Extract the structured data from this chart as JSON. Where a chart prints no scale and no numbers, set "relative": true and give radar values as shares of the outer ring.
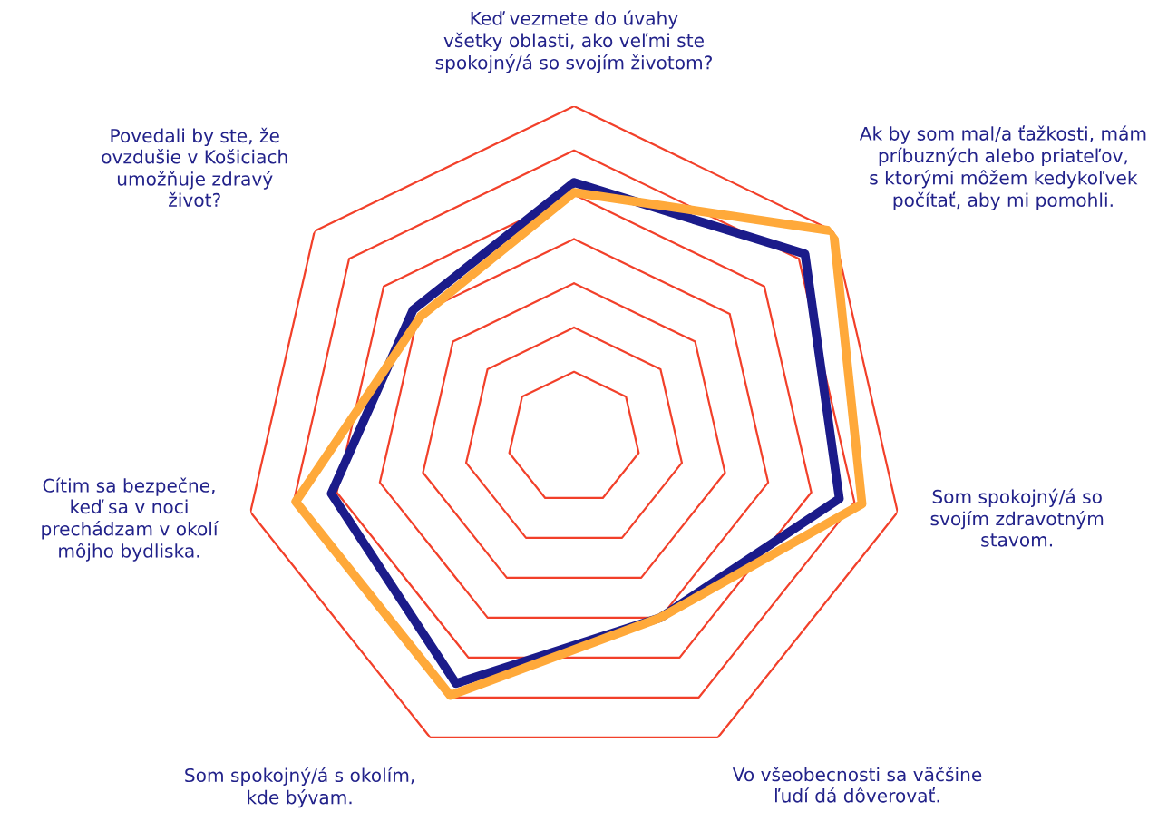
{
  "chart_data": {
    "type": "radar",
    "relative": true,
    "grid": true,
    "categories": [
      "Keď vezmete do úvahy\nvšetky oblasti, ako veľmi ste\nspokojný/á so svojím životom?",
      "Ak by som mal/a ťažkosti, mám\npríbuzných alebo priateľov,\ns ktorými môžem kedykoľvek\npočítať, aby mi pomohli.",
      "Som spokojný/á so\nsvojím zdravotným\nstavom.",
      "Vo všeobecnosti sa väčšine\nľudí dá dôverovať.",
      "Som spokojný/á s okolím,\nkde bývam.",
      "Cítim sa bezpečne,\nkeď sa v noci\nprechádzam v okolí\nmôjho bydliska.",
      "Povedali by ste, že\novzdušie v Košiciach\numožňuje zdravý\nživot?"
    ],
    "series": [
      {
        "color": "#1b1b8a",
        "values": [
          0.77,
          0.89,
          0.82,
          0.6,
          0.82,
          0.75,
          0.62
        ]
      },
      {
        "color": "#ffa93a",
        "values": [
          0.74,
          1.0,
          0.89,
          0.6,
          0.86,
          0.86,
          0.59
        ]
      }
    ]
  }
}
